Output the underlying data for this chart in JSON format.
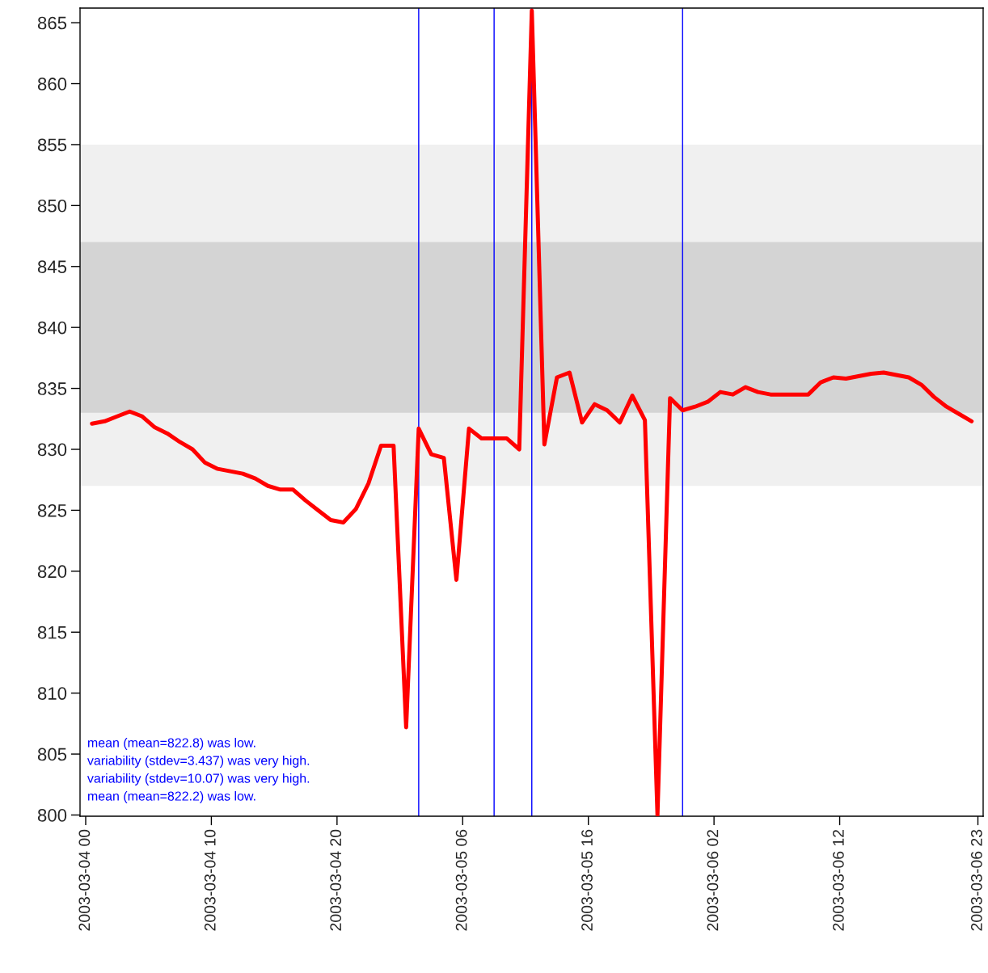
{
  "chart_data": {
    "type": "line",
    "x": [
      "2003-03-04T00:30",
      "2003-03-04T01:30",
      "2003-03-04T02:30",
      "2003-03-04T03:30",
      "2003-03-04T04:30",
      "2003-03-04T05:30",
      "2003-03-04T06:30",
      "2003-03-04T07:30",
      "2003-03-04T08:30",
      "2003-03-04T09:30",
      "2003-03-04T10:30",
      "2003-03-04T11:30",
      "2003-03-04T12:30",
      "2003-03-04T13:30",
      "2003-03-04T14:30",
      "2003-03-04T15:30",
      "2003-03-04T16:30",
      "2003-03-04T17:30",
      "2003-03-04T18:30",
      "2003-03-04T19:30",
      "2003-03-04T20:30",
      "2003-03-04T21:30",
      "2003-03-04T22:30",
      "2003-03-04T23:30",
      "2003-03-05T00:30",
      "2003-03-05T01:30",
      "2003-03-05T02:30",
      "2003-03-05T03:30",
      "2003-03-05T04:30",
      "2003-03-05T05:30",
      "2003-03-05T06:30",
      "2003-03-05T07:30",
      "2003-03-05T08:30",
      "2003-03-05T09:30",
      "2003-03-05T10:30",
      "2003-03-05T11:30",
      "2003-03-05T12:30",
      "2003-03-05T13:30",
      "2003-03-05T14:30",
      "2003-03-05T15:30",
      "2003-03-05T16:30",
      "2003-03-05T17:30",
      "2003-03-05T18:30",
      "2003-03-05T19:30",
      "2003-03-05T20:30",
      "2003-03-05T21:30",
      "2003-03-05T22:30",
      "2003-03-05T23:30",
      "2003-03-06T00:30",
      "2003-03-06T01:30",
      "2003-03-06T02:30",
      "2003-03-06T03:30",
      "2003-03-06T04:30",
      "2003-03-06T05:30",
      "2003-03-06T06:30",
      "2003-03-06T07:30",
      "2003-03-06T08:30",
      "2003-03-06T09:30",
      "2003-03-06T10:30",
      "2003-03-06T11:30",
      "2003-03-06T12:30",
      "2003-03-06T13:30",
      "2003-03-06T14:30",
      "2003-03-06T15:30",
      "2003-03-06T16:30",
      "2003-03-06T17:30",
      "2003-03-06T18:30",
      "2003-03-06T19:30",
      "2003-03-06T20:30",
      "2003-03-06T21:30",
      "2003-03-06T22:30"
    ],
    "series": [
      {
        "color": "#ff0000",
        "values": [
          832.1,
          832.3,
          832.7,
          833.1,
          832.7,
          831.8,
          831.3,
          830.6,
          830.0,
          828.9,
          828.4,
          828.2,
          828.0,
          827.6,
          827.0,
          826.7,
          826.7,
          825.8,
          825.0,
          824.2,
          824.0,
          825.1,
          827.2,
          830.3,
          830.3,
          807.2,
          831.7,
          829.6,
          829.3,
          819.3,
          831.7,
          830.9,
          830.9,
          830.9,
          830.0,
          866,
          830.4,
          835.9,
          836.3,
          832.2,
          833.7,
          833.2,
          832.2,
          834.4,
          832.4,
          800,
          834.2,
          833.2,
          833.5,
          833.9,
          834.7,
          834.5,
          835.1,
          834.7,
          834.5,
          834.5,
          834.5,
          834.5,
          835.5,
          835.9,
          835.8,
          836.0,
          836.2,
          836.3,
          836.1,
          835.9,
          835.3,
          834.3,
          833.5,
          832.9,
          832.3
        ]
      }
    ],
    "xlim": [
      "2003-03-03T23:33",
      "2003-03-06T23:25"
    ],
    "xticks": [
      {
        "value": "2003-03-04T00:00",
        "label": "2003-03-04 00"
      },
      {
        "value": "2003-03-04T10:00",
        "label": "2003-03-04 10"
      },
      {
        "value": "2003-03-04T20:00",
        "label": "2003-03-04 20"
      },
      {
        "value": "2003-03-05T06:00",
        "label": "2003-03-05 06"
      },
      {
        "value": "2003-03-05T16:00",
        "label": "2003-03-05 16"
      },
      {
        "value": "2003-03-06T02:00",
        "label": "2003-03-06 02"
      },
      {
        "value": "2003-03-06T12:00",
        "label": "2003-03-06 12"
      },
      {
        "value": "2003-03-06T23:00",
        "label": "2003-03-06 23"
      }
    ],
    "ylim": [
      799.9,
      866.2
    ],
    "yticks": [
      800,
      805,
      810,
      815,
      820,
      825,
      830,
      835,
      840,
      845,
      850,
      855,
      860,
      865
    ],
    "bands": [
      {
        "axis": "y",
        "from": 827,
        "to": 855,
        "color": "#f0f0f0"
      },
      {
        "axis": "y",
        "from": 833,
        "to": 847,
        "color": "#d4d4d4"
      }
    ],
    "ref_lines": [
      {
        "axis": "x",
        "value": "2003-03-05T02:30",
        "color": "#0000ff"
      },
      {
        "axis": "x",
        "value": "2003-03-05T08:30",
        "color": "#0000ff"
      },
      {
        "axis": "x",
        "value": "2003-03-05T11:30",
        "color": "#0000ff"
      },
      {
        "axis": "x",
        "value": "2003-03-05T23:30",
        "color": "#0000ff"
      }
    ],
    "annotations": [
      "mean (mean=822.8) was low.",
      "variability (stdev=3.437) was very high.",
      "variability (stdev=10.07) was very high.",
      "mean (mean=822.2) was low."
    ],
    "grid": false,
    "marker": "none",
    "line_style": "solid"
  }
}
